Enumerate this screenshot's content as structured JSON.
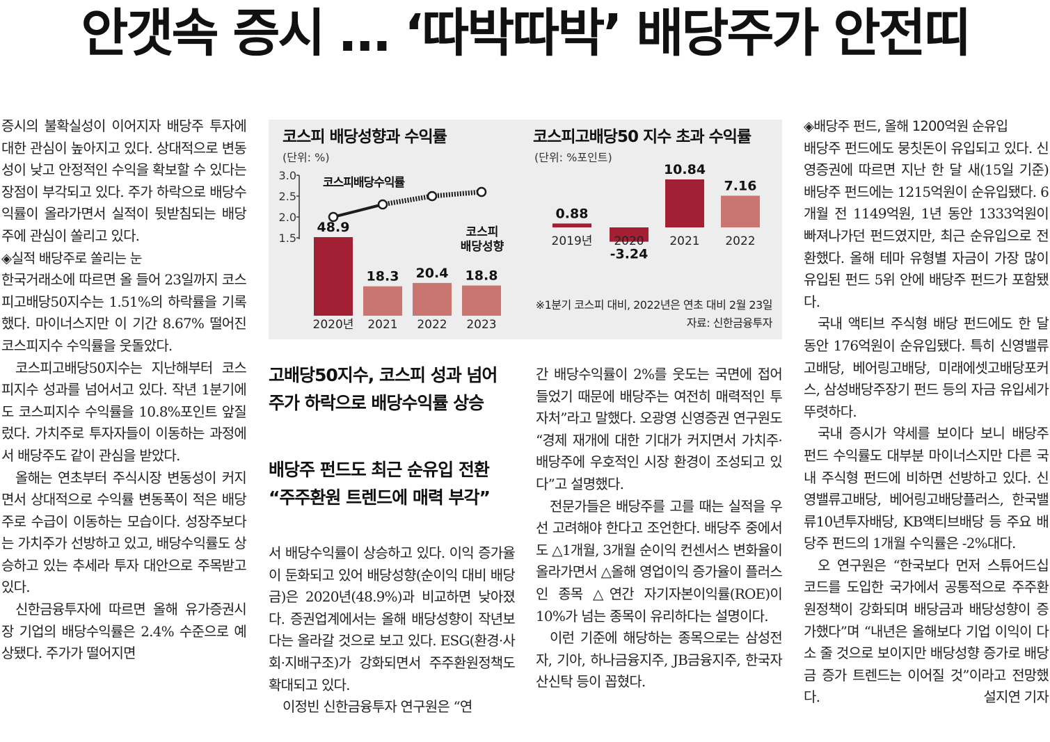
{
  "headline": "안갯속 증시 … ‘따박따박’ 배당주가 안전띠",
  "subheads": {
    "sub1_line1": "고배당50지수, 코스피 성과 넘어",
    "sub1_line2": "주가 하락으로 배당수익률 상승",
    "sub2_line1": "배당주 펀드도 최근 순유입 전환",
    "sub2_line2": "“주주환원 트렌드에 매력 부각”"
  },
  "columns": {
    "c1": [
      {
        "text": "증시의 불확실성이 이어지자 배당주 투자에 대한 관심이 높아지고 있다. 상대적으로 변동성이 낮고 안정적인 수익을 확보할 수 있다는 장점이 부각되고 있다. 주가 하락으로 배당수익률이 올라가면서 실적이 뒷받침되는 배당주에 관심이 쏠리고 있다.",
        "kind": "p"
      },
      {
        "text": "◈실적 배당주로 쏠리는 눈",
        "kind": "sub"
      },
      {
        "text": "한국거래소에 따르면 올 들어 23일까지 코스피고배당50지수는 1.51%의 하락률을 기록했다. 마이너스지만 이 기간 8.67% 떨어진 코스피지수 수익률을 웃돌았다.",
        "kind": "p"
      },
      {
        "text": "코스피고배당50지수는 지난해부터 코스피지수 성과를 넘어서고 있다. 작년 1분기에도 코스피지수 수익률을 10.8%포인트 앞질렀다. 가치주로 투자자들이 이동하는 과정에서 배당주도 같이 관심을 받았다.",
        "kind": "ind"
      },
      {
        "text": "올해는 연초부터 주식시장 변동성이 커지면서 상대적으로 수익률 변동폭이 적은 배당주로 수급이 이동하는 모습이다. 성장주보다는 가치주가 선방하고 있고, 배당수익률도 상승하고 있는 추세라 투자 대안으로 주목받고 있다.",
        "kind": "ind"
      },
      {
        "text": "신한금융투자에 따르면 올해 유가증권시장 기업의 배당수익률은 2.4% 수준으로 예상됐다. 주가가 떨어지면",
        "kind": "ind"
      }
    ],
    "c2": [
      {
        "text": "서 배당수익률이 상승하고 있다. 이익 증가율이 둔화되고 있어 배당성향(순이익 대비 배당금)은 2020년(48.9%)과 비교하면 낮아졌다. 증권업계에서는 올해 배당성향이 작년보다는 올라갈 것으로 보고 있다. ESG(환경·사회·지배구조)가 강화되면서 주주환원정책도 확대되고 있다.",
        "kind": "p"
      },
      {
        "text": "이정빈 신한금융투자 연구원은 “연",
        "kind": "ind"
      }
    ],
    "c3": [
      {
        "text": "간 배당수익률이 2%를 웃도는 국면에 접어들었기 때문에 배당주는 여전히 매력적인 투자처”라고 말했다. 오광영 신영증권 연구원도 “경제 재개에 대한 기대가 커지면서 가치주·배당주에 우호적인 시장 환경이 조성되고 있다”고 설명했다.",
        "kind": "p"
      },
      {
        "text": "전문가들은 배당주를 고를 때는 실적을 우선 고려해야 한다고 조언한다. 배당주 중에서도 △1개월, 3개월 순이익 컨센서스 변화율이 올라가면서 △올해 영업이익 증가율이 플러스인 종목 △연간 자기자본이익률(ROE)이 10%가 넘는 종목이 유리하다는 설명이다.",
        "kind": "ind"
      },
      {
        "text": "이런 기준에 해당하는 종목으로는 삼성전자, 기아, 하나금융지주, JB금융지주, 한국자산신탁 등이 꼽혔다.",
        "kind": "ind"
      }
    ],
    "c4": [
      {
        "text": "◈배당주 펀드, 올해 1200억원 순유입",
        "kind": "sub"
      },
      {
        "text": "배당주 펀드에도 뭉칫돈이 유입되고 있다. 신영증권에 따르면 지난 한 달 새(15일 기준) 배당주 펀드에는 1215억원이 순유입됐다. 6개월 전 1149억원, 1년 동안 1333억원이 빠져나가던 펀드였지만, 최근 순유입으로 전환했다. 올해 테마 유형별 자금이 가장 많이 유입된 펀드 5위 안에 배당주 펀드가 포함됐다.",
        "kind": "p"
      },
      {
        "text": "국내 액티브 주식형 배당 펀드에도 한 달 동안 176억원이 순유입됐다. 특히 신영밸류고배당, 베어링고배당, 미래에셋고배당포커스, 삼성배당주장기 펀드 등의 자금 유입세가 뚜렷하다.",
        "kind": "ind"
      },
      {
        "text": "국내 증시가 약세를 보이다 보니 배당주 펀드 수익률도 대부분 마이너스지만 다른 국내 주식형 펀드에 비하면 선방하고 있다. 신영밸류고배당, 베어링고배당플러스, 한국밸류10년투자배당, KB액티브배당 등 주요 배당주 펀드의 1개월 수익률은 -2%대다.",
        "kind": "ind"
      },
      {
        "text": "오 연구원은 “한국보다 먼저 스튜어드십 코드를 도입한 국가에서 공통적으로 주주환원정책이 강화되며 배당금과 배당성향이 증가했다”며 “내년은 올해보다 기업 이익이 다소 줄 것으로 보이지만 배당성향 증가로 배당금 증가 트렌드는 이어질 것”이라고 전망했다.",
        "kind": "ind"
      }
    ],
    "byline": "설지연 기자"
  },
  "chart_data": [
    {
      "type": "bar",
      "title": "코스피 배당성향과 수익률",
      "unit": "(단위: %)",
      "categories": [
        "2020년",
        "2021",
        "2022",
        "2023"
      ],
      "series": [
        {
          "name": "코스피 배당성향",
          "values": [
            48.9,
            18.3,
            20.4,
            18.8
          ]
        },
        {
          "name": "코스피배당수익률",
          "type": "line",
          "values": [
            2.0,
            2.3,
            2.5,
            2.6
          ]
        }
      ],
      "value_labels": [
        "48.9",
        "18.3",
        "20.4",
        "18.8"
      ],
      "series_label_bar_1": "코스피",
      "series_label_bar_2": "배당성향",
      "y2_ticks": [
        "3.0",
        "2.5",
        "2.0",
        "1.5"
      ],
      "y2lim": [
        1.5,
        3.0
      ],
      "colors": {
        "first": "#a31f34",
        "rest": "#c8766f",
        "line": "#1c1c1c"
      }
    },
    {
      "type": "bar",
      "title": "코스피고배당50 지수 초과 수익률",
      "unit": "(단위: %포인트)",
      "categories": [
        "2019년",
        "2020",
        "2021",
        "2022"
      ],
      "values": [
        0.88,
        -3.24,
        10.84,
        7.16
      ],
      "value_labels": [
        "0.88",
        "-3.24",
        "10.84",
        "7.16"
      ],
      "note": "※1분기 코스피 대비, 2022년은 연초 대비 2월 23일",
      "source": "자료: 신한금융투자",
      "colors": [
        "#a31f34",
        "#a31f34",
        "#a31f34",
        "#c8766f"
      ]
    }
  ]
}
